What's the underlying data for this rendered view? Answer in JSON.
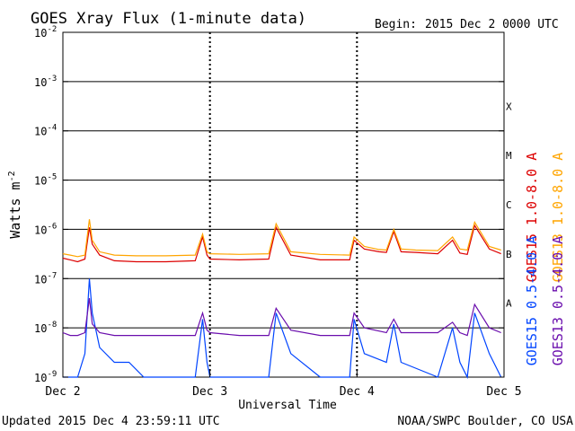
{
  "chart_data": {
    "type": "line",
    "title": "GOES Xray Flux (1-minute data)",
    "begin_label": "Begin:",
    "begin_value": "2015 Dec 2 0000 UTC",
    "xlabel": "Universal Time",
    "ylabel": "Watts m",
    "ylabel_sup": "-2",
    "x_ticks": [
      "Dec 2",
      "Dec 3",
      "Dec 4",
      "Dec 5"
    ],
    "x_range_days": [
      0,
      3
    ],
    "y_scale": "log",
    "y_ticks": [
      {
        "base": "10",
        "exp": "-2"
      },
      {
        "base": "10",
        "exp": "-3"
      },
      {
        "base": "10",
        "exp": "-4"
      },
      {
        "base": "10",
        "exp": "-5"
      },
      {
        "base": "10",
        "exp": "-6"
      },
      {
        "base": "10",
        "exp": "-7"
      },
      {
        "base": "10",
        "exp": "-8"
      },
      {
        "base": "10",
        "exp": "-9"
      }
    ],
    "ylim": [
      1e-09,
      0.01
    ],
    "flare_classes": [
      "X",
      "M",
      "C",
      "B",
      "A"
    ],
    "grid": true,
    "legend_placement": "right",
    "series": [
      {
        "name": "GOES15 1.0-8.0 A",
        "color": "#dd0000",
        "x": [
          0.0,
          0.05,
          0.1,
          0.15,
          0.18,
          0.2,
          0.25,
          0.35,
          0.5,
          0.7,
          0.9,
          0.95,
          0.98,
          1.0,
          1.2,
          1.4,
          1.45,
          1.55,
          1.75,
          1.95,
          1.98,
          2.05,
          2.15,
          2.2,
          2.25,
          2.3,
          2.4,
          2.55,
          2.65,
          2.7,
          2.75,
          2.8,
          2.9,
          2.98
        ],
        "y": [
          2.6e-07,
          2.4e-07,
          2.2e-07,
          2.5e-07,
          1.1e-06,
          5e-07,
          3e-07,
          2.3e-07,
          2.2e-07,
          2.2e-07,
          2.3e-07,
          7e-07,
          3e-07,
          2.5e-07,
          2.4e-07,
          2.5e-07,
          1.1e-06,
          3e-07,
          2.4e-07,
          2.4e-07,
          6e-07,
          4e-07,
          3.5e-07,
          3.4e-07,
          9e-07,
          3.5e-07,
          3.4e-07,
          3.2e-07,
          6e-07,
          3.3e-07,
          3.1e-07,
          1.2e-06,
          4e-07,
          3.2e-07
        ]
      },
      {
        "name": "GOES13 1.0-8.0 A",
        "color": "#ffa500",
        "x": [
          0.0,
          0.05,
          0.1,
          0.15,
          0.18,
          0.2,
          0.25,
          0.35,
          0.5,
          0.7,
          0.9,
          0.95,
          0.98,
          1.0,
          1.2,
          1.4,
          1.45,
          1.55,
          1.75,
          1.95,
          1.98,
          2.05,
          2.15,
          2.2,
          2.25,
          2.3,
          2.4,
          2.55,
          2.65,
          2.7,
          2.75,
          2.8,
          2.9,
          2.98
        ],
        "y": [
          3.2e-07,
          3e-07,
          2.8e-07,
          3e-07,
          1.6e-06,
          6e-07,
          3.5e-07,
          3e-07,
          2.9e-07,
          2.9e-07,
          3e-07,
          8e-07,
          3.5e-07,
          3.2e-07,
          3.1e-07,
          3.2e-07,
          1.3e-06,
          3.5e-07,
          3.1e-07,
          3e-07,
          7e-07,
          4.5e-07,
          3.9e-07,
          3.8e-07,
          1e-06,
          4e-07,
          3.8e-07,
          3.7e-07,
          7e-07,
          4e-07,
          3.8e-07,
          1.4e-06,
          4.5e-07,
          3.8e-07
        ]
      },
      {
        "name": "GOES15 0.5-4.0 A",
        "color": "#0044ff",
        "x": [
          0.0,
          0.05,
          0.1,
          0.15,
          0.18,
          0.2,
          0.25,
          0.35,
          0.45,
          0.55,
          0.7,
          0.9,
          0.95,
          0.98,
          1.0,
          1.2,
          1.4,
          1.45,
          1.55,
          1.75,
          1.95,
          1.98,
          2.05,
          2.2,
          2.25,
          2.3,
          2.55,
          2.65,
          2.7,
          2.75,
          2.8,
          2.9,
          2.98
        ],
        "y": [
          1e-09,
          1e-09,
          1e-09,
          3e-09,
          1e-07,
          2e-08,
          4e-09,
          2e-09,
          2e-09,
          1e-09,
          1e-09,
          1e-09,
          1.5e-08,
          2e-09,
          1e-09,
          1e-09,
          1e-09,
          2e-08,
          3e-09,
          1e-09,
          1e-09,
          1.5e-08,
          3e-09,
          2e-09,
          1.2e-08,
          2e-09,
          1e-09,
          1e-08,
          2e-09,
          1e-09,
          2e-08,
          3e-09,
          1e-09
        ]
      },
      {
        "name": "GOES13 0.5-4.0 A",
        "color": "#6a0dad",
        "x": [
          0.0,
          0.05,
          0.1,
          0.15,
          0.18,
          0.2,
          0.25,
          0.35,
          0.5,
          0.7,
          0.9,
          0.95,
          0.98,
          1.0,
          1.2,
          1.4,
          1.45,
          1.55,
          1.75,
          1.95,
          1.98,
          2.05,
          2.2,
          2.25,
          2.3,
          2.55,
          2.65,
          2.7,
          2.75,
          2.8,
          2.9,
          2.98
        ],
        "y": [
          8e-09,
          7e-09,
          7e-09,
          8e-09,
          4e-08,
          1.2e-08,
          8e-09,
          7e-09,
          7e-09,
          7e-09,
          7e-09,
          2e-08,
          9e-09,
          8e-09,
          7e-09,
          7e-09,
          2.5e-08,
          9e-09,
          7e-09,
          7e-09,
          2e-08,
          1e-08,
          8e-09,
          1.5e-08,
          8e-09,
          8e-09,
          1.3e-08,
          8e-09,
          7e-09,
          3e-08,
          1e-08,
          8e-09
        ]
      }
    ]
  },
  "footer": {
    "updated": "Updated 2015 Dec  4 23:59:11 UTC",
    "source": "NOAA/SWPC Boulder, CO USA"
  }
}
